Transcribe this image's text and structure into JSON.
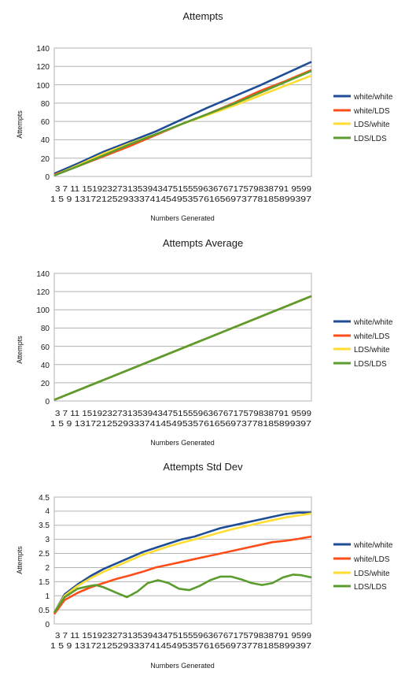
{
  "charts": [
    {
      "title": "Attempts",
      "xlabel": "Numbers Generated",
      "ylabel": "Attempts",
      "ytick_labels": [
        "0",
        "20",
        "40",
        "60",
        "80",
        "100",
        "120",
        "140"
      ],
      "ylim": [
        0,
        140
      ],
      "x_tick_row1": "3  7  11 15192327313539434751555963676717579838791 9599",
      "x_tick_row2": "1  5  9  13172125293337414549535761656973778185899397",
      "legend": [
        "white/white",
        "white/LDS",
        "LDS/white",
        "LDS/LDS"
      ]
    },
    {
      "title": "Attempts Average",
      "xlabel": "Numbers Generated",
      "ylabel": "Attempts",
      "ytick_labels": [
        "0",
        "20",
        "40",
        "60",
        "80",
        "100",
        "120",
        "140"
      ],
      "ylim": [
        0,
        140
      ],
      "x_tick_row1": "3  7  11 15192327313539434751555963676717579838791 9599",
      "x_tick_row2": "1  5  9  13172125293337414549535761656973778185899397",
      "legend": [
        "white/white",
        "white/LDS",
        "LDS/white",
        "LDS/LDS"
      ]
    },
    {
      "title": "Attempts Std Dev",
      "xlabel": "Numbers Generated",
      "ylabel": "Attempts",
      "ytick_labels": [
        "0",
        "0.5",
        "1",
        "1.5",
        "2",
        "2.5",
        "3",
        "3.5",
        "4",
        "4.5"
      ],
      "ylim": [
        0,
        4.5
      ],
      "x_tick_row1": "3  7  11 15192327313539434751555963676717579838791 9599",
      "x_tick_row2": "1  5  9  13172125293337414549535761656973778185899397",
      "legend": [
        "white/white",
        "white/LDS",
        "LDS/white",
        "LDS/LDS"
      ]
    }
  ],
  "colors": {
    "white/white": "#1f4e96",
    "white/LDS": "#ff4d1a",
    "LDS/white": "#ffdd33",
    "LDS/LDS": "#5b9c2e"
  },
  "chart_data": [
    {
      "type": "line",
      "title": "Attempts",
      "xlabel": "Numbers Generated",
      "ylabel": "Attempts",
      "xlim": [
        1,
        100
      ],
      "ylim": [
        0,
        140
      ],
      "grid": true,
      "legend_position": "right",
      "series": [
        {
          "name": "white/white",
          "x": [
            1,
            10,
            20,
            30,
            40,
            50,
            60,
            70,
            80,
            90,
            100
          ],
          "y": [
            3,
            14,
            27,
            38,
            49,
            62,
            75,
            87,
            99,
            112,
            125
          ]
        },
        {
          "name": "white/LDS",
          "x": [
            1,
            10,
            20,
            30,
            40,
            50,
            60,
            70,
            80,
            90,
            100
          ],
          "y": [
            2,
            11,
            22,
            33,
            45,
            57,
            68,
            80,
            93,
            104,
            116
          ]
        },
        {
          "name": "LDS/white",
          "x": [
            1,
            10,
            20,
            30,
            40,
            50,
            60,
            70,
            80,
            90,
            100
          ],
          "y": [
            1,
            12,
            25,
            36,
            46,
            57,
            67,
            77,
            88,
            99,
            110
          ]
        },
        {
          "name": "LDS/LDS",
          "x": [
            1,
            10,
            20,
            30,
            40,
            50,
            60,
            70,
            80,
            90,
            100
          ],
          "y": [
            1,
            11,
            23,
            35,
            46,
            57,
            68,
            79,
            91,
            103,
            115
          ]
        }
      ]
    },
    {
      "type": "line",
      "title": "Attempts Average",
      "xlabel": "Numbers Generated",
      "ylabel": "Attempts",
      "xlim": [
        1,
        100
      ],
      "ylim": [
        0,
        140
      ],
      "grid": true,
      "legend_position": "right",
      "series": [
        {
          "name": "white/white",
          "x": [
            1,
            100
          ],
          "y": [
            1.2,
            115
          ]
        },
        {
          "name": "white/LDS",
          "x": [
            1,
            100
          ],
          "y": [
            1.2,
            115
          ]
        },
        {
          "name": "LDS/white",
          "x": [
            1,
            100
          ],
          "y": [
            1.2,
            115
          ]
        },
        {
          "name": "LDS/LDS",
          "x": [
            1,
            100
          ],
          "y": [
            1.2,
            115
          ]
        }
      ]
    },
    {
      "type": "line",
      "title": "Attempts Std Dev",
      "xlabel": "Numbers Generated",
      "ylabel": "Attempts",
      "xlim": [
        1,
        100
      ],
      "ylim": [
        0,
        4.5
      ],
      "grid": true,
      "legend_position": "right",
      "series": [
        {
          "name": "white/white",
          "x": [
            1,
            5,
            10,
            15,
            20,
            25,
            30,
            35,
            40,
            45,
            50,
            55,
            60,
            65,
            70,
            75,
            80,
            85,
            90,
            95,
            100
          ],
          "y": [
            0.4,
            1.05,
            1.4,
            1.7,
            1.95,
            2.15,
            2.35,
            2.55,
            2.7,
            2.85,
            3.0,
            3.1,
            3.25,
            3.4,
            3.5,
            3.6,
            3.7,
            3.8,
            3.9,
            3.95,
            3.95
          ]
        },
        {
          "name": "white/LDS",
          "x": [
            1,
            5,
            10,
            15,
            20,
            25,
            30,
            35,
            40,
            45,
            50,
            55,
            60,
            65,
            70,
            75,
            80,
            85,
            90,
            95,
            100
          ],
          "y": [
            0.35,
            0.85,
            1.1,
            1.3,
            1.45,
            1.6,
            1.72,
            1.85,
            2.0,
            2.1,
            2.2,
            2.3,
            2.4,
            2.5,
            2.6,
            2.7,
            2.8,
            2.9,
            2.95,
            3.02,
            3.1
          ]
        },
        {
          "name": "LDS/white",
          "x": [
            1,
            5,
            10,
            15,
            20,
            25,
            30,
            35,
            40,
            45,
            50,
            55,
            60,
            65,
            70,
            75,
            80,
            85,
            90,
            95,
            100
          ],
          "y": [
            0.4,
            1.0,
            1.35,
            1.62,
            1.85,
            2.05,
            2.25,
            2.45,
            2.6,
            2.75,
            2.88,
            3.0,
            3.12,
            3.25,
            3.37,
            3.47,
            3.58,
            3.68,
            3.78,
            3.85,
            3.92
          ]
        },
        {
          "name": "LDS/LDS",
          "x": [
            1,
            5,
            10,
            15,
            17,
            20,
            25,
            29,
            33,
            37,
            41,
            45,
            49,
            53,
            57,
            61,
            65,
            69,
            73,
            77,
            81,
            85,
            89,
            93,
            96,
            100
          ],
          "y": [
            0.4,
            0.95,
            1.25,
            1.35,
            1.38,
            1.3,
            1.1,
            0.95,
            1.15,
            1.45,
            1.55,
            1.45,
            1.25,
            1.2,
            1.35,
            1.55,
            1.68,
            1.68,
            1.58,
            1.45,
            1.38,
            1.45,
            1.65,
            1.75,
            1.73,
            1.65
          ]
        }
      ]
    }
  ]
}
